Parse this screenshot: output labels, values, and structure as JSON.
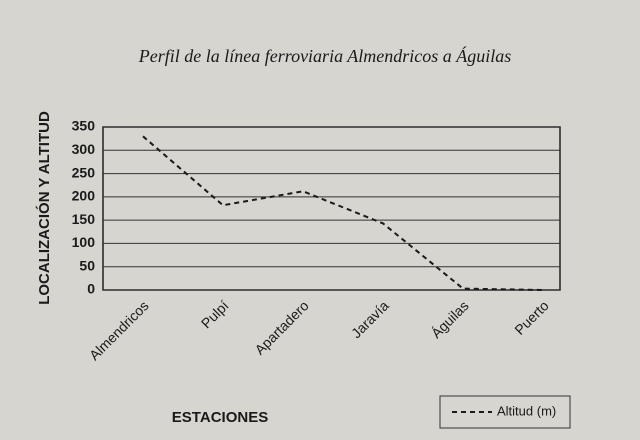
{
  "chart_data": {
    "type": "line",
    "title": "Perfil de la línea ferroviaria Almendricos a Águilas",
    "y_label": "LOCALIZACIÓN Y ALTITUD",
    "x_label": "ESTACIONES",
    "categories": [
      "Almendricos",
      "Pulpí",
      "Apartadero",
      "Jaravía",
      "Águilas",
      "Puerto"
    ],
    "series": [
      {
        "name": "Altitud (m)",
        "color": "#1a1a1a",
        "values": [
          330,
          182,
          212,
          143,
          3,
          0
        ]
      }
    ],
    "ylim": [
      0,
      350
    ],
    "yticks": [
      0,
      50,
      100,
      150,
      200,
      250,
      300,
      350
    ],
    "grid": true
  }
}
